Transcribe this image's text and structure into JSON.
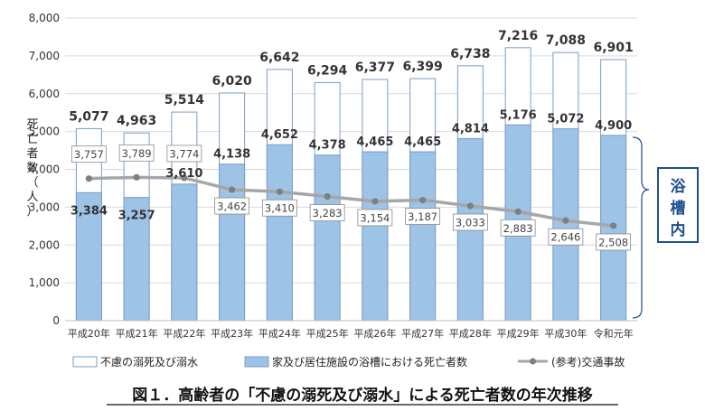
{
  "chart_data": {
    "type": "bar",
    "categories": [
      "平成20年",
      "平成21年",
      "平成22年",
      "平成23年",
      "平成24年",
      "平成25年",
      "平成26年",
      "平成27年",
      "平成28年",
      "平成29年",
      "平成30年",
      "令和元年"
    ],
    "series": [
      {
        "name": "不慮の溺死及び溺水",
        "kind": "bar-total",
        "values": [
          5077,
          4963,
          5514,
          6020,
          6642,
          6294,
          6377,
          6399,
          6738,
          7216,
          7088,
          6901
        ],
        "labels": [
          "5,077",
          "4,963",
          "5,514",
          "6,020",
          "6,642",
          "6,294",
          "6,377",
          "6,399",
          "6,738",
          "7,216",
          "7,088",
          "6,901"
        ],
        "color": "#ffffff"
      },
      {
        "name": "家及び居住施設の浴槽における死亡者数",
        "kind": "bar-fill",
        "values": [
          3384,
          3257,
          3610,
          4138,
          4652,
          4378,
          4465,
          4465,
          4814,
          5176,
          5072,
          4900
        ],
        "labels": [
          "3,384",
          "3,257",
          "3,610",
          "4,138",
          "4,652",
          "4,378",
          "4,465",
          "4,465",
          "4,814",
          "5,176",
          "5,072",
          "4,900"
        ],
        "color": "#9dc3e6"
      },
      {
        "name": "(参考)交通事故",
        "kind": "line",
        "values": [
          3757,
          3789,
          3774,
          3462,
          3410,
          3283,
          3154,
          3187,
          3033,
          2883,
          2646,
          2508
        ],
        "labels": [
          "3,757",
          "3,789",
          "3,774",
          "3,462",
          "3,410",
          "3,283",
          "3,154",
          "3,187",
          "3,033",
          "2,883",
          "2,646",
          "2,508"
        ],
        "color": "#a6a6a6"
      }
    ],
    "ylim": [
      0,
      8000
    ],
    "yticks": [
      0,
      1000,
      2000,
      3000,
      4000,
      5000,
      6000,
      7000,
      8000
    ],
    "ytick_labels": [
      "0",
      "1,000",
      "2,000",
      "3,000",
      "4,000",
      "5,000",
      "6,000",
      "7,000",
      "8,000"
    ],
    "ylabel": "死亡者数（人）",
    "title": "図１．高齢者の「不慮の溺死及び溺水」による死亡者数の年次推移",
    "annotation": "浴槽内",
    "legend_position": "bottom",
    "grid": true
  },
  "colors": {
    "bar_outline": "#7a9cc6",
    "bar_fill": "#9dc3e6",
    "line": "#a6a6a6",
    "marker": "#7f7f7f",
    "grid": "#d9d9d9",
    "annotation": "#1f4e8c"
  }
}
